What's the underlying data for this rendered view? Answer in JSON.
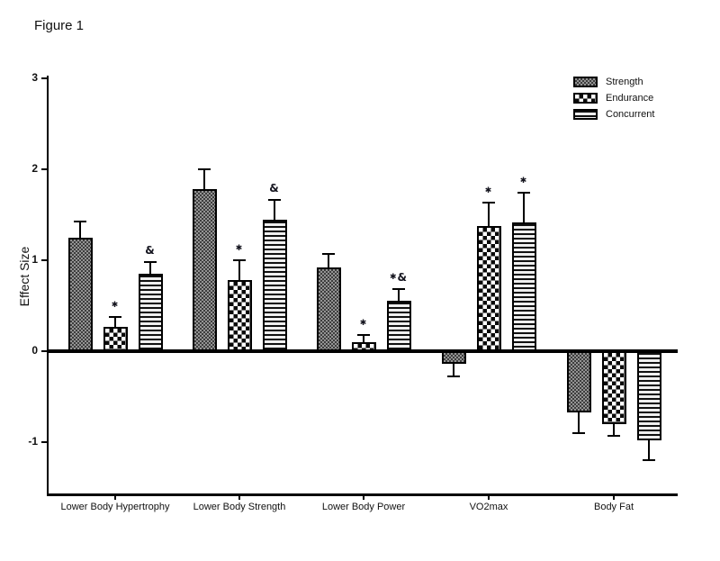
{
  "figure_label": "Figure 1",
  "colors": {
    "ink": "#000000",
    "background": "#ffffff"
  },
  "legend": {
    "position": "top-right"
  },
  "chart_data": {
    "type": "bar",
    "title": "Figure 1",
    "xlabel": "",
    "ylabel": "Effect Size",
    "ylim": [
      -1.55,
      3
    ],
    "yticks": [
      3,
      2,
      1,
      0,
      -1
    ],
    "grid": false,
    "legend_position": "top-right",
    "categories": [
      "Lower Body Hypertrophy",
      "Lower Body Strength",
      "Lower Body Power",
      "VO2max",
      "Body Fat"
    ],
    "series": [
      {
        "name": "Strength",
        "pattern": "fine-checker",
        "values": [
          1.25,
          1.78,
          0.92,
          -0.14,
          -0.67
        ],
        "errors": [
          0.18,
          0.22,
          0.15,
          0.14,
          0.23
        ],
        "annotations": [
          "",
          "",
          "",
          "",
          ""
        ]
      },
      {
        "name": "Endurance",
        "pattern": "coarse-checker",
        "values": [
          0.27,
          0.78,
          0.1,
          1.38,
          -0.8
        ],
        "errors": [
          0.11,
          0.22,
          0.08,
          0.26,
          0.13
        ],
        "annotations": [
          "*",
          "*",
          "*",
          "*",
          ""
        ]
      },
      {
        "name": "Concurrent",
        "pattern": "horizontal-stripes",
        "values": [
          0.85,
          1.45,
          0.55,
          1.42,
          -0.98
        ],
        "errors": [
          0.13,
          0.22,
          0.13,
          0.33,
          0.22
        ],
        "annotations": [
          "&",
          "&",
          "*&",
          "*",
          ""
        ]
      }
    ]
  }
}
